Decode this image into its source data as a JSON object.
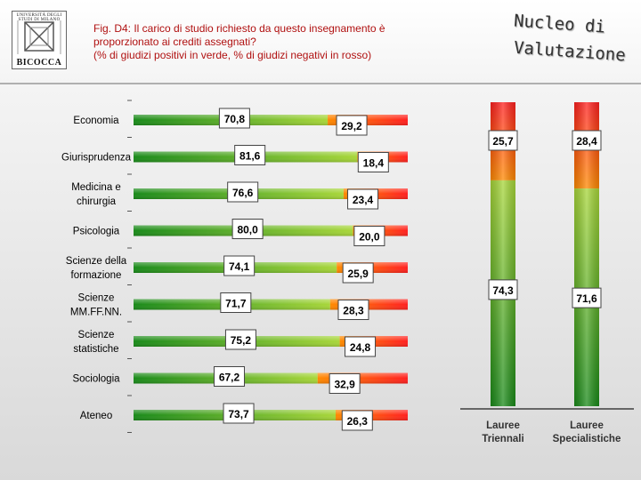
{
  "logo": {
    "top_text": "UNIVERSITÀ DEGLI STUDI DI MILANO",
    "bottom_text": "BICOCCA"
  },
  "title": {
    "line1": "Fig. D4: Il carico di studio richiesto da questo insegnamento è",
    "line2": "proporzionato ai crediti assegnati?",
    "line3": "(% di giudizi positivi in verde, % di giudizi negativi in rosso)"
  },
  "brand": {
    "line1": "Nucleo di",
    "line2": "Valutazione"
  },
  "colors": {
    "positive_dark": "#1a8a1a",
    "positive_light": "#9acd32",
    "negative_orange": "#ff7a00",
    "negative_red": "#ff2a2a",
    "label_text": "#000000",
    "title_text": "#b01010"
  },
  "chart_data": [
    {
      "type": "bar",
      "orientation": "horizontal",
      "stacked": true,
      "categories": [
        "Economia",
        "Giurisprudenza",
        "Medicina e chirurgia",
        "Psicologia",
        "Scienze della formazione",
        "Scienze MM.FF.NN.",
        "Scienze statistiche",
        "Sociologia",
        "Ateneo"
      ],
      "positive": [
        70.8,
        81.6,
        76.6,
        80.0,
        74.1,
        71.7,
        75.2,
        67.2,
        73.7
      ],
      "negative": [
        29.2,
        18.4,
        23.4,
        20.0,
        25.9,
        28.3,
        24.8,
        32.9,
        26.3
      ],
      "positive_labels": [
        "70,8",
        "81,6",
        "76,6",
        "80,0",
        "74,1",
        "71,7",
        "75,2",
        "67,2",
        "73,7"
      ],
      "negative_labels": [
        "29,2",
        "18,4",
        "23,4",
        "20,0",
        "25,9",
        "28,3",
        "24,8",
        "32,9",
        "26,3"
      ],
      "xlim": [
        0,
        100
      ]
    },
    {
      "type": "bar",
      "orientation": "vertical",
      "stacked": true,
      "categories": [
        "Lauree Triennali",
        "Lauree Specialistiche"
      ],
      "category_lines": [
        [
          "Lauree",
          "Triennali"
        ],
        [
          "Lauree",
          "Specialistiche"
        ]
      ],
      "positive": [
        74.3,
        71.6
      ],
      "negative": [
        25.7,
        28.4
      ],
      "positive_labels": [
        "74,3",
        "71,6"
      ],
      "negative_labels": [
        "25,7",
        "28,4"
      ],
      "ylim": [
        0,
        100
      ]
    }
  ]
}
